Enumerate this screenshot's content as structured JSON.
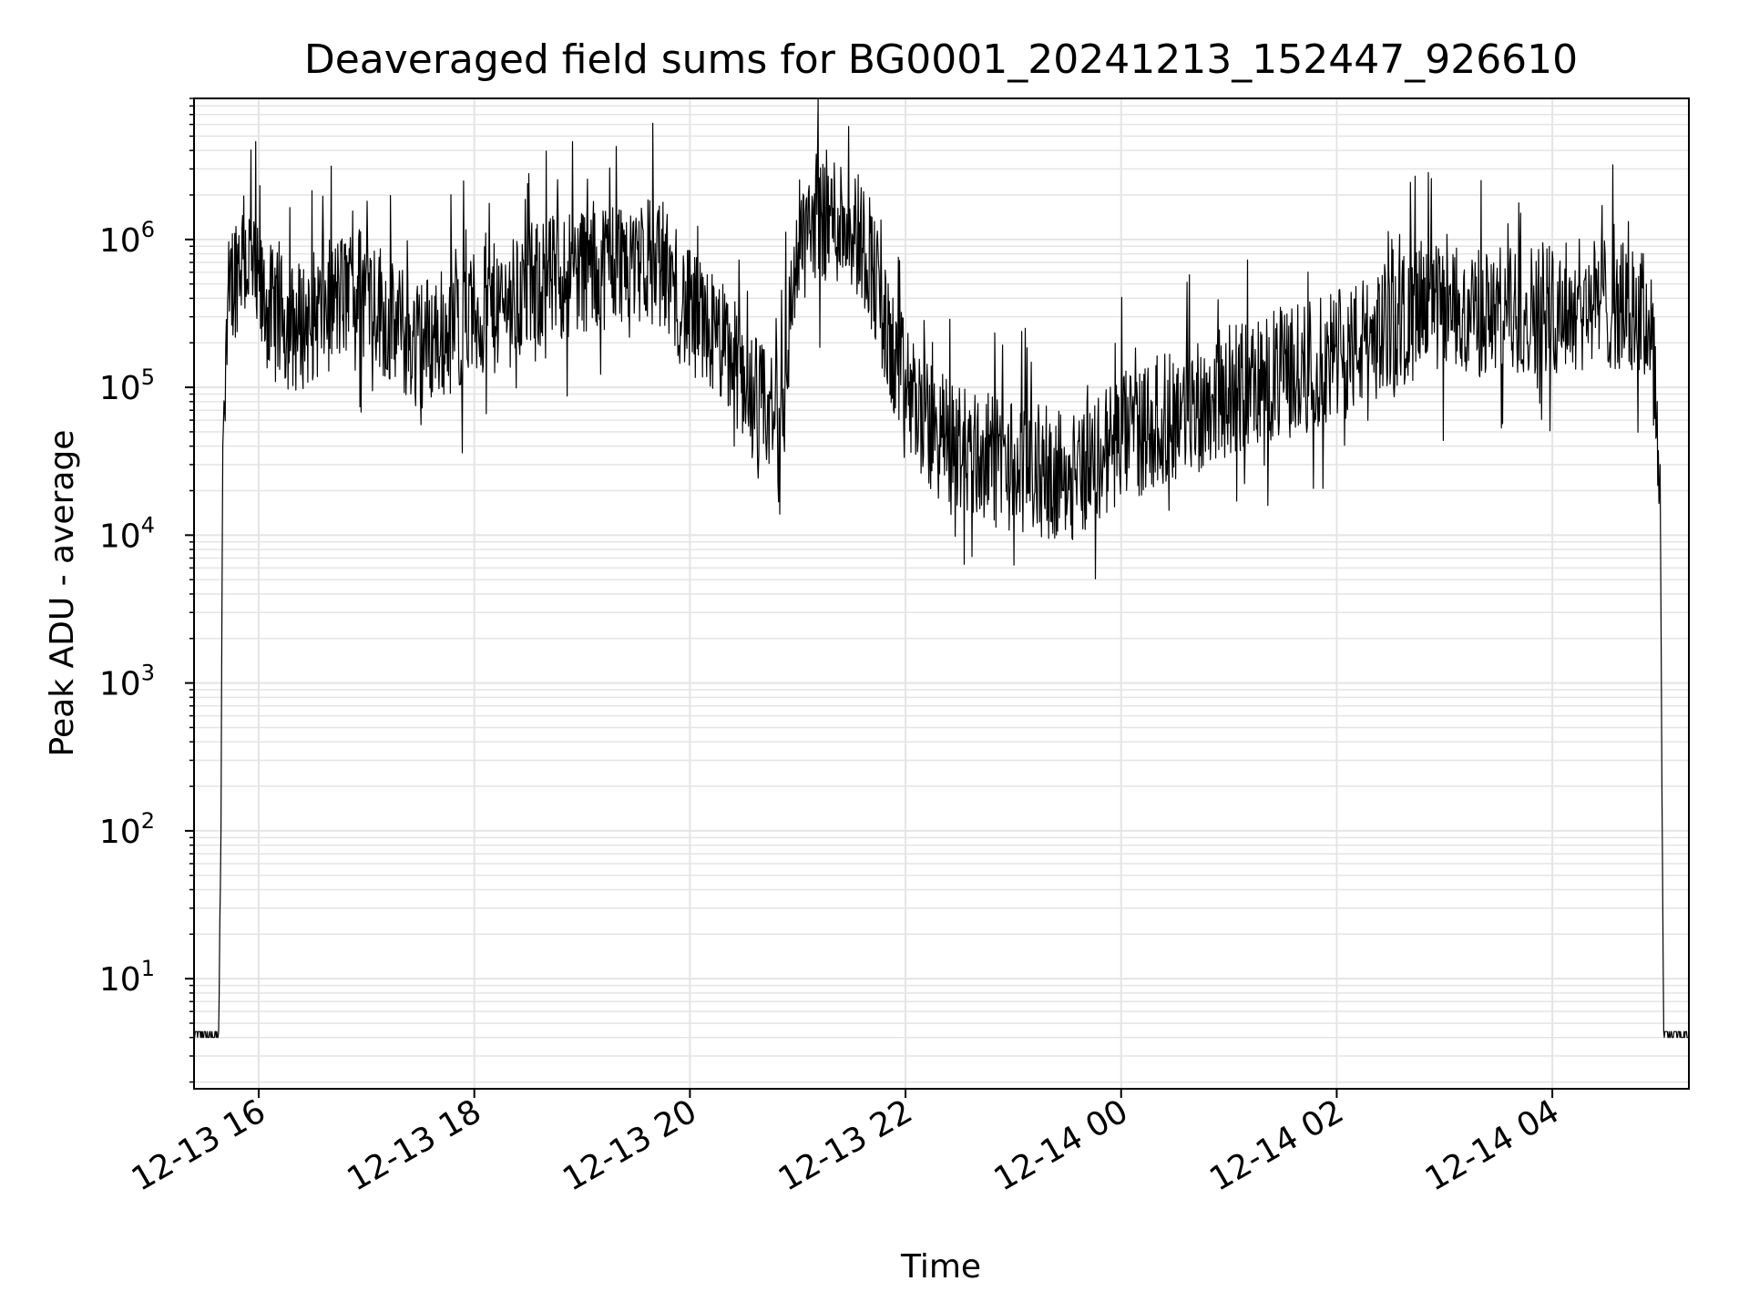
{
  "chart_data": {
    "type": "line",
    "title": "Deaveraged field sums for BG0001_20241213_152447_926610",
    "xlabel": "Time",
    "ylabel": "Peak ADU - average",
    "yscale": "log",
    "grid": "on (major and minor)",
    "colors": {
      "line": "#000000",
      "grid": "#e4e4e4",
      "frame": "#000000"
    },
    "xlim": [
      "2024-12-13 15:24",
      "2024-12-14 05:16"
    ],
    "ylim": [
      1.8,
      9000000
    ],
    "x_ticks": [
      {
        "label": "12-13 16",
        "value": "2024-12-13 16:00"
      },
      {
        "label": "12-13 18",
        "value": "2024-12-13 18:00"
      },
      {
        "label": "12-13 20",
        "value": "2024-12-13 20:00"
      },
      {
        "label": "12-13 22",
        "value": "2024-12-13 22:00"
      },
      {
        "label": "12-14 00",
        "value": "2024-12-14 00:00"
      },
      {
        "label": "12-14 02",
        "value": "2024-12-14 02:00"
      },
      {
        "label": "12-14 04",
        "value": "2024-12-14 04:00"
      }
    ],
    "y_ticks": [
      {
        "base": "10",
        "exp": "1",
        "value": 10
      },
      {
        "base": "10",
        "exp": "2",
        "value": 100
      },
      {
        "base": "10",
        "exp": "3",
        "value": 1000
      },
      {
        "base": "10",
        "exp": "4",
        "value": 10000
      },
      {
        "base": "10",
        "exp": "5",
        "value": 100000
      },
      {
        "base": "10",
        "exp": "6",
        "value": 1000000
      }
    ],
    "series": [
      {
        "x": [
          "2024-12-13 15:24",
          "2024-12-13 15:38",
          "2024-12-13 15:39",
          "2024-12-13 15:40",
          "2024-12-13 15:42",
          "2024-12-13 15:45",
          "2024-12-13 15:50",
          "2024-12-13 15:55",
          "2024-12-13 16:00",
          "2024-12-13 16:10",
          "2024-12-13 16:20",
          "2024-12-13 16:30",
          "2024-12-13 16:45",
          "2024-12-13 17:00",
          "2024-12-13 17:15",
          "2024-12-13 17:30",
          "2024-12-13 17:45",
          "2024-12-13 18:00",
          "2024-12-13 18:15",
          "2024-12-13 18:30",
          "2024-12-13 18:45",
          "2024-12-13 19:00",
          "2024-12-13 19:15",
          "2024-12-13 19:30",
          "2024-12-13 19:45",
          "2024-12-13 20:00",
          "2024-12-13 20:10",
          "2024-12-13 20:20",
          "2024-12-13 20:30",
          "2024-12-13 20:40",
          "2024-12-13 20:50",
          "2024-12-13 21:00",
          "2024-12-13 21:10",
          "2024-12-13 21:20",
          "2024-12-13 21:30",
          "2024-12-13 21:40",
          "2024-12-13 21:50",
          "2024-12-13 22:00",
          "2024-12-13 22:15",
          "2024-12-13 22:30",
          "2024-12-13 22:45",
          "2024-12-13 23:00",
          "2024-12-13 23:15",
          "2024-12-13 23:30",
          "2024-12-13 23:45",
          "2024-12-14 00:00",
          "2024-12-14 00:15",
          "2024-12-14 00:30",
          "2024-12-14 00:45",
          "2024-12-14 01:00",
          "2024-12-14 01:15",
          "2024-12-14 01:30",
          "2024-12-14 01:45",
          "2024-12-14 02:00",
          "2024-12-14 02:15",
          "2024-12-14 02:30",
          "2024-12-14 02:45",
          "2024-12-14 03:00",
          "2024-12-14 03:15",
          "2024-12-14 03:30",
          "2024-12-14 03:45",
          "2024-12-14 04:00",
          "2024-12-14 04:15",
          "2024-12-14 04:30",
          "2024-12-14 04:45",
          "2024-12-14 04:55",
          "2024-12-14 05:00",
          "2024-12-14 05:01",
          "2024-12-14 05:02",
          "2024-12-14 05:16"
        ],
        "y": [
          4,
          4,
          100,
          50000,
          300000,
          500000,
          800000,
          700000,
          400000,
          300000,
          250000,
          300000,
          400000,
          500000,
          250000,
          200000,
          250000,
          300000,
          350000,
          450000,
          550000,
          650000,
          700000,
          800000,
          650000,
          300000,
          250000,
          180000,
          120000,
          70000,
          60000,
          900000,
          1500000,
          1400000,
          1300000,
          800000,
          200000,
          100000,
          50000,
          40000,
          32000,
          30000,
          27000,
          25000,
          32000,
          45000,
          55000,
          65000,
          80000,
          95000,
          110000,
          125000,
          140000,
          160000,
          200000,
          260000,
          320000,
          330000,
          310000,
          320000,
          340000,
          350000,
          360000,
          380000,
          320000,
          280000,
          30000,
          200,
          4,
          4
        ]
      }
    ]
  }
}
